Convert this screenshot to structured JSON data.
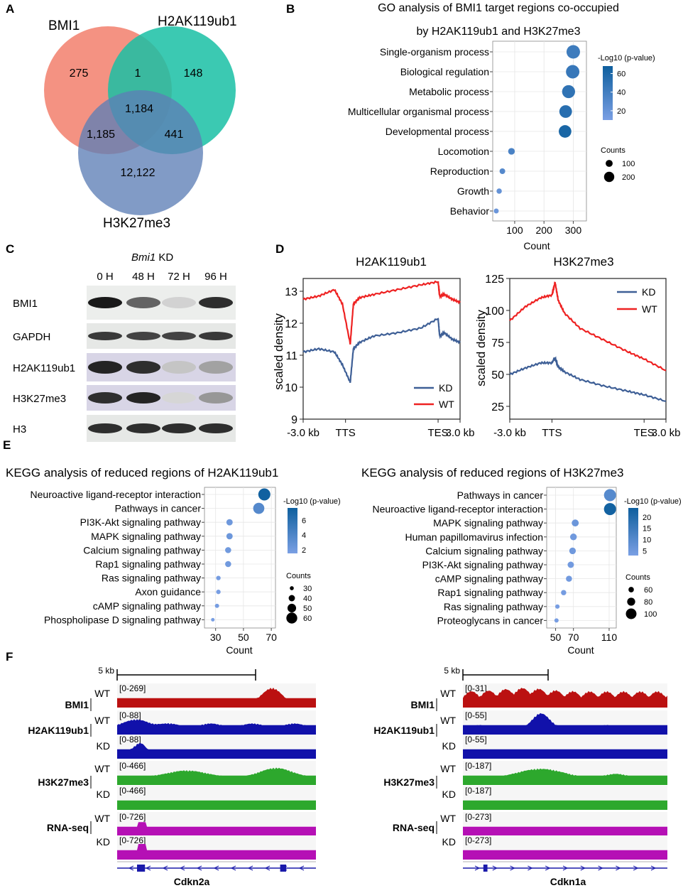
{
  "colors": {
    "bmi1": "#F27F6C",
    "h2a": "#19C0A4",
    "h3k": "#5E7FB6",
    "kd": "#3E5F96",
    "wt": "#EE2222",
    "dot_low": "#7A9FE4",
    "dot_high": "#0E5F9E",
    "track_red": "#BB1111",
    "track_blue": "#1111AA",
    "track_green": "#2DA82D",
    "track_mag": "#B510B5"
  },
  "panel_a": {
    "letter": "A",
    "sets": [
      "BMI1",
      "H2AK119ub1",
      "H3K27me3"
    ],
    "counts": {
      "bmi1_only": "275",
      "bmi1_h2a": "1",
      "h2a_only": "148",
      "center": "1,184",
      "bmi1_h3k": "1,185",
      "h2a_h3k": "441",
      "h3k_only": "12,122"
    }
  },
  "panel_b": {
    "letter": "B",
    "title1": "GO analysis of BMI1 target regions co-occupied",
    "title2": "by H2AK119ub1 and H3K27me3",
    "legend_color_title": "-Log10 (p-value)",
    "legend_size_title": "Counts",
    "chart_data": {
      "type": "scatter",
      "title": "GO analysis of BMI1 target regions co-occupied by H2AK119ub1 and H3K27me3",
      "xlabel": "Count",
      "xlim": [
        25,
        345
      ],
      "xticks": [
        100,
        200,
        300
      ],
      "categories": [
        "Single-organism process",
        "Biological regulation",
        "Metabolic process",
        "Multicellular organismal process",
        "Developmental process",
        "Locomotion",
        "Reproduction",
        "Growth",
        "Behavior"
      ],
      "counts": [
        300,
        298,
        284,
        274,
        272,
        89,
        58,
        47,
        37
      ],
      "neg_log10_p": [
        42,
        46,
        50,
        54,
        62,
        36,
        30,
        22,
        18
      ],
      "color_ticks": [
        20,
        40,
        60
      ],
      "color_range": [
        10,
        68
      ],
      "size_ticks": [
        100,
        200
      ]
    }
  },
  "panel_c": {
    "letter": "C",
    "header_italic": "Bmi1",
    "header_rest": " KD",
    "timepoints": [
      "0 H",
      "48 H",
      "72 H",
      "96 H"
    ],
    "rows": [
      "BMI1",
      "GAPDH",
      "H2AK119ub1",
      "H3K27me3",
      "H3"
    ]
  },
  "panel_d": {
    "letter": "D",
    "chart_data": [
      {
        "type": "line",
        "title": "H2AK119ub1",
        "ylabel": "scaled density",
        "ylim": [
          9,
          13.4
        ],
        "yticks": [
          9,
          10,
          11,
          12,
          13
        ],
        "xticks": [
          "-3.0 kb",
          "TTS",
          "TES",
          "3.0 kb"
        ],
        "legend": [
          "KD",
          "WT"
        ],
        "series": [
          {
            "name": "WT",
            "x": [
              0,
              0.1,
              0.2,
              0.25,
              0.3,
              0.32,
              0.36,
              0.45,
              0.6,
              0.75,
              0.86,
              0.87,
              0.9,
              0.95,
              1
            ],
            "y": [
              12.75,
              12.85,
              13.05,
              12.6,
              11.35,
              12.6,
              12.8,
              12.9,
              13.05,
              13.2,
              13.3,
              12.85,
              12.9,
              12.75,
              12.65
            ]
          },
          {
            "name": "KD",
            "x": [
              0,
              0.1,
              0.2,
              0.25,
              0.3,
              0.32,
              0.36,
              0.45,
              0.6,
              0.75,
              0.86,
              0.87,
              0.9,
              0.95,
              1
            ],
            "y": [
              11.1,
              11.2,
              11.1,
              10.7,
              10.15,
              11.2,
              11.4,
              11.6,
              11.7,
              11.85,
              12.15,
              11.6,
              11.7,
              11.5,
              11.4
            ]
          }
        ]
      },
      {
        "type": "line",
        "title": "H3K27me3",
        "ylabel": "scaled density",
        "ylim": [
          15,
          125
        ],
        "yticks": [
          25,
          50,
          75,
          100,
          125
        ],
        "xticks": [
          "-3.0 kb",
          "TTS",
          "TES",
          "3.0 kb"
        ],
        "legend": [
          "KD",
          "WT"
        ],
        "series": [
          {
            "name": "WT",
            "x": [
              0,
              0.1,
              0.2,
              0.27,
              0.29,
              0.31,
              0.35,
              0.45,
              0.6,
              0.75,
              0.86,
              1
            ],
            "y": [
              92,
              103,
              110,
              112,
              122,
              108,
              98,
              86,
              77,
              68,
              62,
              53
            ]
          },
          {
            "name": "KD",
            "x": [
              0,
              0.1,
              0.2,
              0.27,
              0.29,
              0.31,
              0.35,
              0.45,
              0.6,
              0.75,
              0.86,
              1
            ],
            "y": [
              50,
              55,
              59,
              59,
              63,
              56,
              52,
              46,
              41,
              37,
              34,
              29
            ]
          }
        ]
      }
    ]
  },
  "panel_e": {
    "letter": "E",
    "legend_color_title": "-Log10 (p-value)",
    "legend_size_title": "Counts",
    "chart_data": [
      {
        "type": "scatter",
        "title": "KEGG analysis of reduced regions of H2AK119ub1",
        "xlabel": "Count",
        "xlim": [
          22,
          73
        ],
        "xticks": [
          30,
          50,
          70
        ],
        "categories": [
          "Neuroactive ligand-receptor interaction",
          "Pathways in cancer",
          "PI3K-Akt signaling pathway",
          "MAPK signaling pathway",
          "Calcium signaling pathway",
          "Rap1 signaling pathway",
          "Ras signaling pathway",
          "Axon guidance",
          "cAMP signaling pathway",
          "Phospholipase D signaling pathway"
        ],
        "counts": [
          65,
          61,
          40,
          40,
          39,
          39,
          32,
          32,
          31,
          28
        ],
        "neg_log10_p": [
          7.5,
          3.6,
          2.2,
          2.3,
          2.0,
          2.0,
          1.8,
          1.6,
          1.8,
          1.6
        ],
        "color_ticks": [
          2,
          4,
          6
        ],
        "color_range": [
          1.5,
          7.7
        ],
        "size_ticks": [
          30,
          40,
          50,
          60
        ]
      },
      {
        "type": "scatter",
        "title": "KEGG analysis of reduced regions of H3K27me3",
        "xlabel": "Count",
        "xlim": [
          40,
          118
        ],
        "xticks": [
          50,
          70,
          110
        ],
        "categories": [
          "Pathways in cancer",
          "Neuroactive ligand-receptor interaction",
          "MAPK signaling pathway",
          "Human papillomavirus infection",
          "Calcium signaling pathway",
          "PI3K-Akt signaling pathway",
          "cAMP signaling pathway",
          "Rap1 signaling pathway",
          "Ras signaling pathway",
          "Proteoglycans in cancer"
        ],
        "counts": [
          111,
          111,
          72,
          70,
          69,
          67,
          65,
          59,
          52,
          51
        ],
        "neg_log10_p": [
          10,
          23,
          6,
          5,
          5,
          4.5,
          4.5,
          4,
          3.5,
          3.5
        ],
        "color_ticks": [
          5,
          10,
          15,
          20
        ],
        "color_range": [
          3,
          24
        ],
        "size_ticks": [
          60,
          80,
          100
        ]
      }
    ]
  },
  "panel_f": {
    "letter": "F",
    "scale": "5 kb",
    "left": {
      "gene": "Cdkn2a",
      "ranges": [
        "[0-269]",
        "[0-88]",
        "[0-88]",
        "[0-466]",
        "[0-466]",
        "[0-726]",
        "[0-726]"
      ]
    },
    "right": {
      "gene": "Cdkn1a",
      "ranges": [
        "[0-31]",
        "[0-55]",
        "[0-55]",
        "[0-187]",
        "[0-187]",
        "[0-273]",
        "[0-273]"
      ]
    },
    "track_labels": [
      "BMI1",
      "H2AK119ub1",
      "H3K27me3",
      "RNA-seq"
    ],
    "conditions": [
      "WT",
      "KD"
    ]
  }
}
